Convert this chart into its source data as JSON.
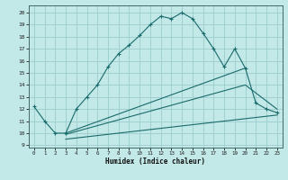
{
  "title": "",
  "xlabel": "Humidex (Indice chaleur)",
  "bg_color": "#c2e8e8",
  "grid_color": "#a0d0d0",
  "line_color": "#1a6b6b",
  "xlim": [
    -0.5,
    23.5
  ],
  "ylim": [
    8.8,
    20.6
  ],
  "xticks": [
    0,
    1,
    2,
    3,
    4,
    5,
    6,
    7,
    8,
    9,
    10,
    11,
    12,
    13,
    14,
    15,
    16,
    17,
    18,
    19,
    20,
    21,
    22,
    23
  ],
  "yticks": [
    9,
    10,
    11,
    12,
    13,
    14,
    15,
    16,
    17,
    18,
    19,
    20
  ],
  "curve1_x": [
    0,
    1,
    2,
    3,
    4,
    5,
    6,
    7,
    8,
    9,
    10,
    11,
    12,
    13,
    14,
    15,
    16,
    17,
    18,
    19,
    20,
    21,
    22,
    23
  ],
  "curve1_y": [
    12.2,
    11.0,
    10.0,
    10.0,
    12.0,
    13.0,
    14.0,
    15.5,
    16.6,
    17.3,
    18.1,
    19.0,
    19.7,
    19.5,
    20.0,
    19.5,
    18.3,
    17.0,
    15.5,
    17.0,
    15.4,
    12.5,
    12.0,
    11.7
  ],
  "curve2_x": [
    3,
    20
  ],
  "curve2_y": [
    10.0,
    15.4
  ],
  "curve3_x": [
    3,
    20,
    23
  ],
  "curve3_y": [
    9.9,
    14.0,
    12.0
  ],
  "curve4_x": [
    3,
    23
  ],
  "curve4_y": [
    9.5,
    11.5
  ]
}
